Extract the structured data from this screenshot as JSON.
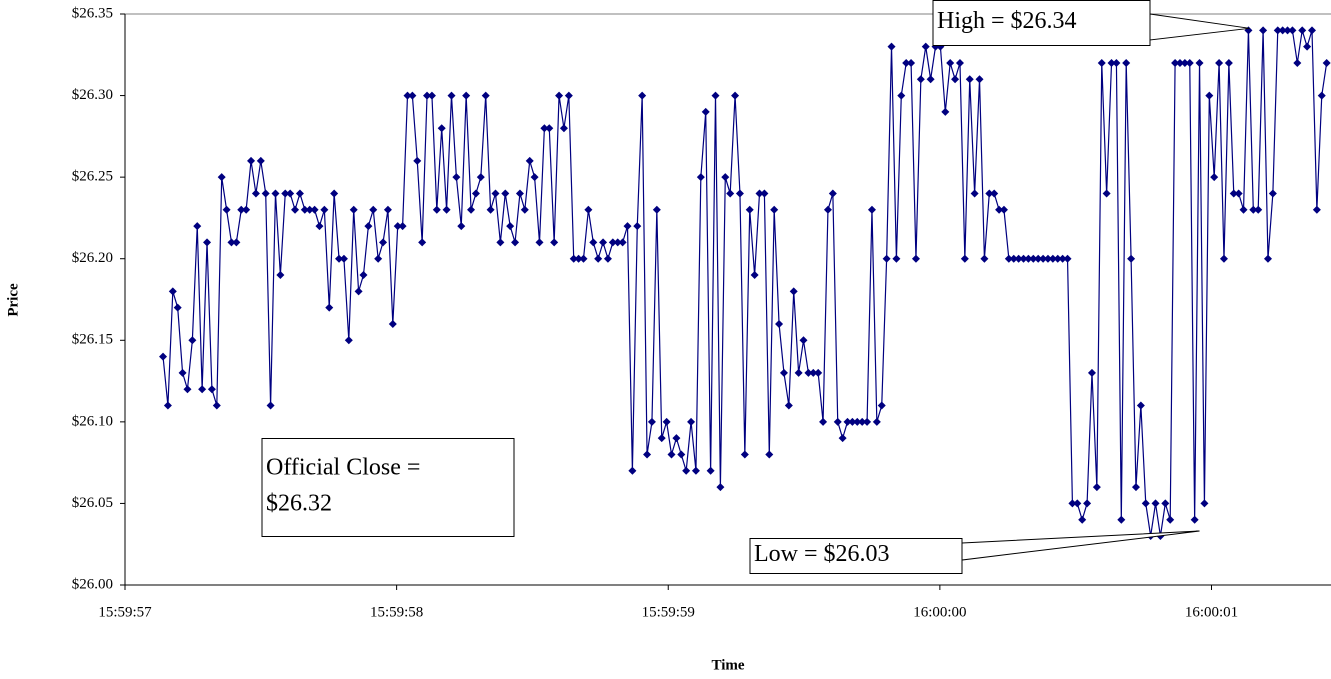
{
  "chart_data": {
    "type": "line",
    "x_label": "Time",
    "y_label": "Price",
    "color": "#000080",
    "annotations": [
      {
        "lines": [
          "High = $26.34"
        ],
        "x": 57601.14,
        "y": 26.34
      },
      {
        "lines": [
          "Low = $26.03"
        ],
        "x": 57600.956,
        "y": 26.03
      },
      {
        "lines": [
          "Official Close =",
          "$26.32"
        ]
      }
    ],
    "xlim": [
      57597,
      57601.44
    ],
    "xticks": [
      {
        "value": 57597,
        "label": "15:59:57"
      },
      {
        "value": 57598,
        "label": "15:59:58"
      },
      {
        "value": 57599,
        "label": "15:59:59"
      },
      {
        "value": 57600,
        "label": "16:00:00"
      },
      {
        "value": 57601,
        "label": "16:00:01"
      }
    ],
    "ylim": [
      26.0,
      26.35
    ],
    "yticks": [
      {
        "value": 26.0,
        "label": "$26.00"
      },
      {
        "value": 26.05,
        "label": "$26.05"
      },
      {
        "value": 26.1,
        "label": "$26.10"
      },
      {
        "value": 26.15,
        "label": "$26.15"
      },
      {
        "value": 26.2,
        "label": "$26.20"
      },
      {
        "value": 26.25,
        "label": "$26.25"
      },
      {
        "value": 26.3,
        "label": "$26.30"
      },
      {
        "value": 26.35,
        "label": "$26.35"
      }
    ],
    "x": [
      57597.14,
      57597.158,
      57597.176,
      57597.194,
      57597.212,
      57597.23,
      57597.248,
      57597.266,
      57597.284,
      57597.302,
      57597.32,
      57597.338,
      57597.356,
      57597.374,
      57597.392,
      57597.41,
      57597.428,
      57597.446,
      57597.464,
      57597.482,
      57597.5,
      57597.518,
      57597.536,
      57597.554,
      57597.572,
      57597.59,
      57597.608,
      57597.626,
      57597.644,
      57597.662,
      57597.68,
      57597.698,
      57597.716,
      57597.734,
      57597.752,
      57597.77,
      57597.788,
      57597.806,
      57597.824,
      57597.842,
      57597.86,
      57597.878,
      57597.896,
      57597.914,
      57597.932,
      57597.95,
      57597.968,
      57597.986,
      57598.004,
      57598.022,
      57598.04,
      57598.058,
      57598.076,
      57598.094,
      57598.112,
      57598.13,
      57598.148,
      57598.166,
      57598.184,
      57598.202,
      57598.22,
      57598.238,
      57598.256,
      57598.274,
      57598.292,
      57598.31,
      57598.328,
      57598.346,
      57598.364,
      57598.382,
      57598.4,
      57598.418,
      57598.436,
      57598.454,
      57598.472,
      57598.49,
      57598.508,
      57598.526,
      57598.544,
      57598.562,
      57598.58,
      57598.598,
      57598.616,
      57598.634,
      57598.652,
      57598.67,
      57598.688,
      57598.706,
      57598.724,
      57598.742,
      57598.76,
      57598.778,
      57598.796,
      57598.814,
      57598.832,
      57598.85,
      57598.868,
      57598.886,
      57598.904,
      57598.922,
      57598.94,
      57598.958,
      57598.976,
      57598.994,
      57599.012,
      57599.03,
      57599.048,
      57599.066,
      57599.084,
      57599.102,
      57599.12,
      57599.138,
      57599.156,
      57599.174,
      57599.192,
      57599.21,
      57599.228,
      57599.246,
      57599.264,
      57599.282,
      57599.3,
      57599.318,
      57599.336,
      57599.354,
      57599.372,
      57599.39,
      57599.408,
      57599.426,
      57599.444,
      57599.462,
      57599.48,
      57599.498,
      57599.516,
      57599.534,
      57599.552,
      57599.57,
      57599.588,
      57599.606,
      57599.624,
      57599.642,
      57599.66,
      57599.678,
      57599.696,
      57599.714,
      57599.732,
      57599.75,
      57599.768,
      57599.786,
      57599.804,
      57599.822,
      57599.84,
      57599.858,
      57599.876,
      57599.894,
      57599.912,
      57599.93,
      57599.948,
      57599.966,
      57599.984,
      57600.002,
      57600.02,
      57600.038,
      57600.056,
      57600.074,
      57600.092,
      57600.11,
      57600.128,
      57600.146,
      57600.164,
      57600.182,
      57600.2,
      57600.218,
      57600.236,
      57600.254,
      57600.272,
      57600.29,
      57600.308,
      57600.326,
      57600.344,
      57600.362,
      57600.38,
      57600.398,
      57600.416,
      57600.434,
      57600.452,
      57600.47,
      57600.488,
      57600.506,
      57600.524,
      57600.542,
      57600.56,
      57600.578,
      57600.596,
      57600.614,
      57600.632,
      57600.65,
      57600.668,
      57600.686,
      57600.704,
      57600.722,
      57600.74,
      57600.758,
      57600.776,
      57600.794,
      57600.812,
      57600.83,
      57600.848,
      57600.866,
      57600.884,
      57600.902,
      57600.92,
      57600.938,
      57600.956,
      57600.974,
      57600.992,
      57601.01,
      57601.028,
      57601.046,
      57601.064,
      57601.082,
      57601.1,
      57601.118,
      57601.136,
      57601.154,
      57601.172,
      57601.19,
      57601.208,
      57601.226,
      57601.244,
      57601.262,
      57601.28,
      57601.298,
      57601.316,
      57601.334,
      57601.352,
      57601.37,
      57601.388,
      57601.406,
      57601.424
    ],
    "values": [
      26.14,
      26.11,
      26.18,
      26.17,
      26.13,
      26.12,
      26.15,
      26.22,
      26.12,
      26.21,
      26.12,
      26.11,
      26.25,
      26.23,
      26.21,
      26.21,
      26.23,
      26.23,
      26.26,
      26.24,
      26.26,
      26.24,
      26.11,
      26.24,
      26.19,
      26.24,
      26.24,
      26.23,
      26.24,
      26.23,
      26.23,
      26.23,
      26.22,
      26.23,
      26.17,
      26.24,
      26.2,
      26.2,
      26.15,
      26.23,
      26.18,
      26.19,
      26.22,
      26.23,
      26.2,
      26.21,
      26.23,
      26.16,
      26.22,
      26.22,
      26.3,
      26.3,
      26.26,
      26.21,
      26.3,
      26.3,
      26.23,
      26.28,
      26.23,
      26.3,
      26.25,
      26.22,
      26.3,
      26.23,
      26.24,
      26.25,
      26.3,
      26.23,
      26.24,
      26.21,
      26.24,
      26.22,
      26.21,
      26.24,
      26.23,
      26.26,
      26.25,
      26.21,
      26.28,
      26.28,
      26.21,
      26.3,
      26.28,
      26.3,
      26.2,
      26.2,
      26.2,
      26.23,
      26.21,
      26.2,
      26.21,
      26.2,
      26.21,
      26.21,
      26.21,
      26.22,
      26.07,
      26.22,
      26.3,
      26.08,
      26.1,
      26.23,
      26.09,
      26.1,
      26.08,
      26.09,
      26.08,
      26.07,
      26.1,
      26.07,
      26.25,
      26.29,
      26.07,
      26.3,
      26.06,
      26.25,
      26.24,
      26.3,
      26.24,
      26.08,
      26.23,
      26.19,
      26.24,
      26.24,
      26.08,
      26.23,
      26.16,
      26.13,
      26.11,
      26.18,
      26.13,
      26.15,
      26.13,
      26.13,
      26.13,
      26.1,
      26.23,
      26.24,
      26.1,
      26.09,
      26.1,
      26.1,
      26.1,
      26.1,
      26.1,
      26.23,
      26.1,
      26.11,
      26.2,
      26.33,
      26.2,
      26.3,
      26.32,
      26.32,
      26.2,
      26.31,
      26.33,
      26.31,
      26.33,
      26.33,
      26.29,
      26.32,
      26.31,
      26.32,
      26.2,
      26.31,
      26.24,
      26.31,
      26.2,
      26.24,
      26.24,
      26.23,
      26.23,
      26.2,
      26.2,
      26.2,
      26.2,
      26.2,
      26.2,
      26.2,
      26.2,
      26.2,
      26.2,
      26.2,
      26.2,
      26.2,
      26.05,
      26.05,
      26.04,
      26.05,
      26.13,
      26.06,
      26.32,
      26.24,
      26.32,
      26.32,
      26.04,
      26.32,
      26.2,
      26.06,
      26.11,
      26.05,
      26.03,
      26.05,
      26.03,
      26.05,
      26.04,
      26.32,
      26.32,
      26.32,
      26.32,
      26.04,
      26.32,
      26.05,
      26.3,
      26.25,
      26.32,
      26.2,
      26.32,
      26.24,
      26.24,
      26.23,
      26.34,
      26.23,
      26.23,
      26.34,
      26.2,
      26.24,
      26.34,
      26.34,
      26.34,
      26.34,
      26.32,
      26.34,
      26.33,
      26.34,
      26.23,
      26.3,
      26.32
    ]
  }
}
